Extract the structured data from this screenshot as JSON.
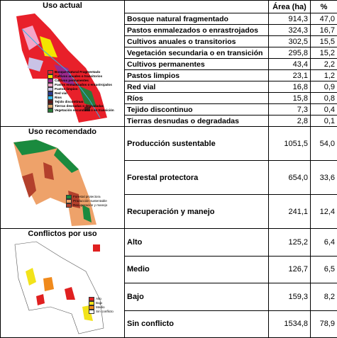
{
  "header": {
    "area": "Área (ha)",
    "percent": "%"
  },
  "sections": [
    {
      "title": "Uso actual",
      "legend": [
        {
          "label": "Bosque Natural Fragmentado",
          "color": "#e8202a"
        },
        {
          "label": "Cultivos anuales o transitorios",
          "color": "#f3e600"
        },
        {
          "label": "Cultivos permanentes",
          "color": "#9b2b8f"
        },
        {
          "label": "Pastos enmalezados o enrastrojados",
          "color": "#f4a6c8"
        },
        {
          "label": "Pastos limpios",
          "color": "#c9c3e6"
        },
        {
          "label": "Red vial",
          "color": "#2b3a8f"
        },
        {
          "label": "Rios",
          "color": "#31b4e6"
        },
        {
          "label": "Tejido discontinuo",
          "color": "#5a1a1a"
        },
        {
          "label": "Tierras desnudas o degradadas",
          "color": "#d9a46b"
        },
        {
          "label": "Vegetación secundaria o en transición",
          "color": "#2a7a3a"
        }
      ],
      "rows": [
        [
          "Bosque natural fragmentado",
          "914,3",
          "47,0"
        ],
        [
          "Pastos enmalezados o enrastrojados",
          "324,3",
          "16,7"
        ],
        [
          "Cultivos anuales o transitorios",
          "302,5",
          "15,5"
        ],
        [
          "Vegetación secundaria o en transición",
          "295,8",
          "15,2"
        ],
        [
          "Cultivos permanentes",
          "43,4",
          "2,2"
        ],
        [
          "Pastos limpios",
          "23,1",
          "1,2"
        ],
        [
          "Red vial",
          "16,8",
          "0,9"
        ],
        [
          "Ríos",
          "15,8",
          "0,8"
        ],
        [
          "Tejido discontinuo",
          "7,3",
          "0,4"
        ],
        [
          "Tierras desnudas o degradadas",
          "2,8",
          "0,1"
        ]
      ]
    },
    {
      "title": "Uso recomendado",
      "legend": [
        {
          "label": "Forestal protectora",
          "color": "#1a8a3e"
        },
        {
          "label": "Producción sustentable",
          "color": "#eea26a"
        },
        {
          "label": "Recuperación y manejo",
          "color": "#b3402c"
        }
      ],
      "rows": [
        [
          "Producción sustentable",
          "1051,5",
          "54,0"
        ],
        [
          "Forestal protectora",
          "654,0",
          "33,6"
        ],
        [
          "Recuperación y manejo",
          "241,1",
          "12,4"
        ]
      ]
    },
    {
      "title": "Conflictos por uso",
      "legend": [
        {
          "label": "Alto",
          "color": "#e02020"
        },
        {
          "label": "Bajo",
          "color": "#f2e31a"
        },
        {
          "label": "Medio",
          "color": "#f08a1c"
        },
        {
          "label": "Sin conflicto",
          "color": "#ffffff"
        }
      ],
      "rows": [
        [
          "Alto",
          "125,2",
          "6,4"
        ],
        [
          "Medio",
          "126,7",
          "6,5"
        ],
        [
          "Bajo",
          "159,3",
          "8,2"
        ],
        [
          "Sin conflicto",
          "1534,8",
          "78,9"
        ]
      ]
    }
  ]
}
